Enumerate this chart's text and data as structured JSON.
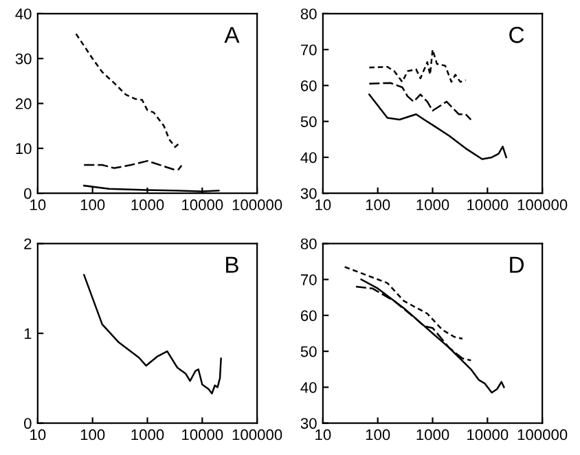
{
  "chart_data": [
    {
      "type": "line",
      "log": "x",
      "annotations": [
        "A"
      ],
      "xlim": [
        10,
        100000
      ],
      "xticks": [
        10,
        100,
        1000,
        10000,
        100000
      ],
      "ylim": [
        0,
        40
      ],
      "yticks": [
        0,
        10,
        20,
        30,
        40
      ],
      "series": [
        {
          "color": "#000000",
          "line_style": "dotted",
          "x": [
            50,
            100,
            150,
            250,
            400,
            600,
            800,
            1000,
            1300,
            2000,
            2500,
            3200,
            3700
          ],
          "values": [
            35.5,
            30,
            27,
            24.5,
            22,
            21,
            20.8,
            18.5,
            18,
            15,
            12,
            10.3,
            11
          ]
        },
        {
          "color": "#000000",
          "line_style": "dashed",
          "x": [
            70,
            150,
            250,
            500,
            1000,
            2000,
            3000,
            3700,
            4200
          ],
          "values": [
            6.3,
            6.3,
            5.6,
            6.3,
            7.2,
            6,
            5.3,
            5.3,
            6.2
          ]
        },
        {
          "color": "#000000",
          "line_style": "solid",
          "x": [
            70,
            200,
            1000,
            3000,
            10000,
            20000
          ],
          "values": [
            1.7,
            1.0,
            0.7,
            0.6,
            0.4,
            0.6
          ]
        }
      ]
    },
    {
      "type": "line",
      "log": "x",
      "annotations": [
        "C"
      ],
      "xlim": [
        10,
        100000
      ],
      "xticks": [
        10,
        100,
        1000,
        10000,
        100000
      ],
      "ylim": [
        30,
        80
      ],
      "yticks": [
        30,
        40,
        50,
        60,
        70,
        80
      ],
      "series": [
        {
          "color": "#000000",
          "line_style": "dotted",
          "x": [
            70,
            150,
            200,
            280,
            350,
            500,
            600,
            800,
            900,
            1000,
            1200,
            1700,
            2200,
            2600,
            3200,
            4000
          ],
          "values": [
            65,
            65.2,
            64,
            61,
            64,
            64.5,
            62,
            66.5,
            63,
            70,
            66,
            65.5,
            61,
            63,
            61,
            61.5
          ]
        },
        {
          "color": "#000000",
          "line_style": "dashed",
          "x": [
            70,
            170,
            280,
            350,
            450,
            600,
            800,
            1000,
            1800,
            3000,
            4000,
            5000
          ],
          "values": [
            60.5,
            60.7,
            59.5,
            57,
            55.5,
            57.5,
            55.5,
            53,
            55.5,
            52,
            52,
            50.5
          ]
        },
        {
          "color": "#000000",
          "line_style": "solid",
          "x": [
            70,
            150,
            250,
            500,
            700,
            1000,
            2000,
            4000,
            8000,
            12000,
            16000,
            19000,
            22000
          ],
          "values": [
            57.5,
            51,
            50.5,
            52,
            50.5,
            49,
            46,
            42.5,
            39.5,
            40,
            41,
            43,
            40
          ]
        }
      ]
    },
    {
      "type": "line",
      "log": "x",
      "annotations": [
        "B"
      ],
      "xlim": [
        10,
        100000
      ],
      "xticks": [
        10,
        100,
        1000,
        10000,
        100000
      ],
      "ylim": [
        0,
        2
      ],
      "yticks": [
        0,
        1,
        2
      ],
      "series": [
        {
          "color": "#000000",
          "line_style": "solid",
          "x": [
            70,
            150,
            300,
            700,
            950,
            1500,
            2300,
            3500,
            5000,
            6000,
            7500,
            8500,
            10000,
            13000,
            15000,
            17000,
            19000,
            21000,
            22000
          ],
          "values": [
            1.65,
            1.1,
            0.9,
            0.73,
            0.64,
            0.74,
            0.8,
            0.62,
            0.55,
            0.47,
            0.58,
            0.6,
            0.43,
            0.38,
            0.33,
            0.42,
            0.4,
            0.5,
            0.72
          ]
        }
      ]
    },
    {
      "type": "line",
      "log": "x",
      "annotations": [
        "D"
      ],
      "xlim": [
        10,
        100000
      ],
      "xticks": [
        10,
        100,
        1000,
        10000,
        100000
      ],
      "ylim": [
        30,
        80
      ],
      "yticks": [
        30,
        40,
        50,
        60,
        70,
        80
      ],
      "series": [
        {
          "color": "#000000",
          "line_style": "dotted",
          "x": [
            25,
            150,
            300,
            800,
            1500,
            2500,
            3500
          ],
          "values": [
            73.5,
            69,
            64,
            60.5,
            56,
            54,
            53.5
          ]
        },
        {
          "color": "#000000",
          "line_style": "dashed",
          "x": [
            40,
            80,
            200,
            500,
            700,
            1000,
            2000,
            3500,
            5000
          ],
          "values": [
            68,
            67.5,
            64,
            59,
            57,
            56.5,
            51,
            48,
            47.5
          ]
        },
        {
          "color": "#000000",
          "line_style": "solid",
          "x": [
            50,
            100,
            300,
            600,
            1000,
            2000,
            5000,
            7000,
            9000,
            12000,
            15000,
            18000,
            20000
          ],
          "values": [
            70,
            67.5,
            62,
            58,
            55,
            51,
            45,
            42,
            41,
            38.5,
            39.5,
            41.5,
            40
          ]
        }
      ]
    }
  ]
}
